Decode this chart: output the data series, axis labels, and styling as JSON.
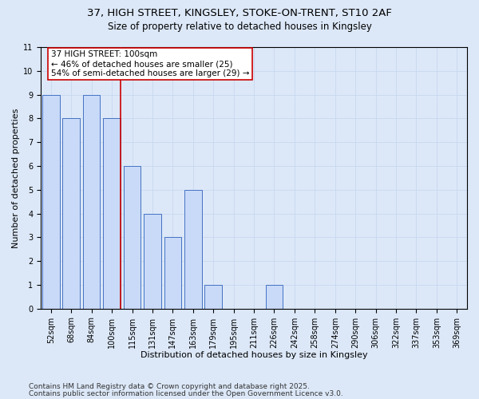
{
  "title1": "37, HIGH STREET, KINGSLEY, STOKE-ON-TRENT, ST10 2AF",
  "title2": "Size of property relative to detached houses in Kingsley",
  "xlabel": "Distribution of detached houses by size in Kingsley",
  "ylabel": "Number of detached properties",
  "categories": [
    "52sqm",
    "68sqm",
    "84sqm",
    "100sqm",
    "115sqm",
    "131sqm",
    "147sqm",
    "163sqm",
    "179sqm",
    "195sqm",
    "211sqm",
    "226sqm",
    "242sqm",
    "258sqm",
    "274sqm",
    "290sqm",
    "306sqm",
    "322sqm",
    "337sqm",
    "353sqm",
    "369sqm"
  ],
  "values": [
    9,
    8,
    9,
    8,
    6,
    4,
    3,
    5,
    1,
    0,
    0,
    1,
    0,
    0,
    0,
    0,
    0,
    0,
    0,
    0,
    0
  ],
  "bar_color": "#c9daf8",
  "bar_edge_color": "#4472c4",
  "highlight_index": 3,
  "red_line_color": "#cc0000",
  "annotation_line1": "37 HIGH STREET: 100sqm",
  "annotation_line2": "← 46% of detached houses are smaller (25)",
  "annotation_line3": "54% of semi-detached houses are larger (29) →",
  "annotation_box_color": "#ffffff",
  "annotation_box_edge": "#cc0000",
  "ylim": [
    0,
    11
  ],
  "yticks": [
    0,
    1,
    2,
    3,
    4,
    5,
    6,
    7,
    8,
    9,
    10,
    11
  ],
  "grid_color": "#c8d8f0",
  "bg_color": "#dce8f8",
  "footer1": "Contains HM Land Registry data © Crown copyright and database right 2025.",
  "footer2": "Contains public sector information licensed under the Open Government Licence v3.0.",
  "title_fontsize": 9.5,
  "subtitle_fontsize": 8.5,
  "xlabel_fontsize": 8,
  "ylabel_fontsize": 8,
  "tick_fontsize": 7,
  "annotation_fontsize": 7.5,
  "footer_fontsize": 6.5
}
